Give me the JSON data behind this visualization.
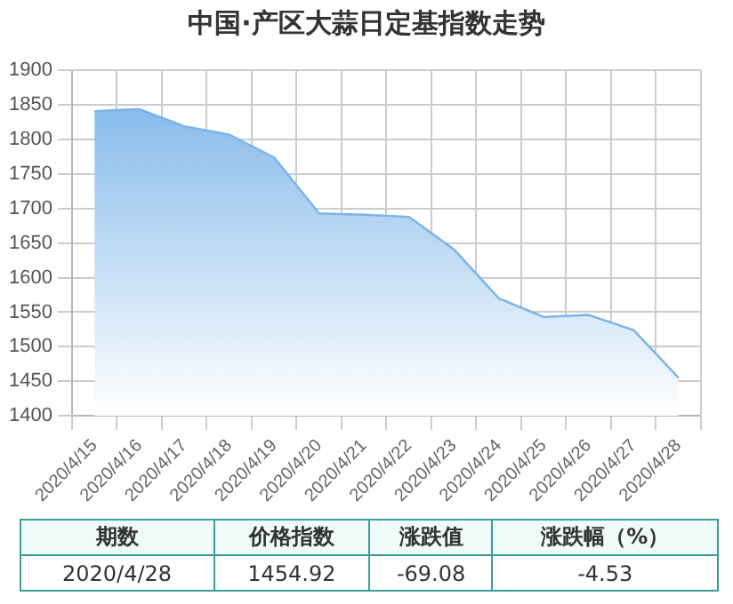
{
  "chart_data": {
    "type": "area",
    "title": "中国·产区大蒜日定基指数走势",
    "categories": [
      "2020/4/15",
      "2020/4/16",
      "2020/4/17",
      "2020/4/18",
      "2020/4/19",
      "2020/4/20",
      "2020/4/21",
      "2020/4/22",
      "2020/4/23",
      "2020/4/24",
      "2020/4/25",
      "2020/4/26",
      "2020/4/27",
      "2020/4/28"
    ],
    "series": [
      {
        "color": "#7ab3e8",
        "values": [
          1841,
          1844,
          1819,
          1807,
          1774,
          1693,
          1691,
          1688,
          1641,
          1570,
          1543,
          1546,
          1524,
          1454.92
        ]
      }
    ],
    "ylim": [
      1400,
      1900
    ],
    "yticks": [
      1400,
      1450,
      1500,
      1550,
      1600,
      1650,
      1700,
      1750,
      1800,
      1850,
      1900
    ],
    "grid": true,
    "legend": false,
    "annotations": [
      "期数",
      "价格指数",
      "涨跌值",
      "涨跌幅（%）",
      "2020/4/28",
      "1454.92",
      "-69.08",
      "-4.53"
    ]
  }
}
